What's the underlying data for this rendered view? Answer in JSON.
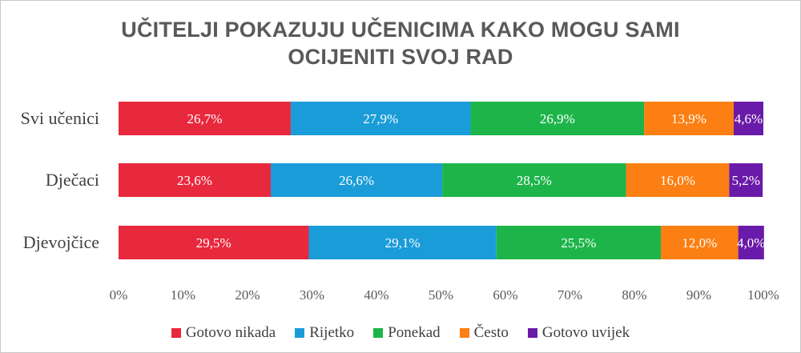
{
  "chart_data": {
    "type": "bar",
    "orientation": "horizontal",
    "stacked": "percent",
    "title_lines": [
      "UČITELJI POKAZUJU UČENICIMA KAKO MOGU SAMI",
      "OCIJENITI SVOJ RAD"
    ],
    "categories": [
      "Svi učenici",
      "Dječaci",
      "Djevojčice"
    ],
    "series": [
      {
        "name": "Gotovo nikada",
        "color": "#e8283c",
        "values": [
          26.7,
          23.6,
          29.5
        ],
        "labels": [
          "26,7%",
          "23,6%",
          "29,5%"
        ]
      },
      {
        "name": "Rijetko",
        "color": "#1a9cd8",
        "values": [
          27.9,
          26.6,
          29.1
        ],
        "labels": [
          "27,9%",
          "26,6%",
          "29,1%"
        ]
      },
      {
        "name": "Ponekad",
        "color": "#1db54a",
        "values": [
          26.9,
          28.5,
          25.5
        ],
        "labels": [
          "26,9%",
          "28,5%",
          "25,5%"
        ]
      },
      {
        "name": "Često",
        "color": "#fb7f12",
        "values": [
          13.9,
          16.0,
          12.0
        ],
        "labels": [
          "13,9%",
          "16,0%",
          "12,0%"
        ]
      },
      {
        "name": "Gotovo uvijek",
        "color": "#6a1aa8",
        "values": [
          4.6,
          5.2,
          4.0
        ],
        "labels": [
          "4,6%",
          "5,2%",
          "4,0%"
        ]
      }
    ],
    "x_ticks": [
      "0%",
      "10%",
      "20%",
      "30%",
      "40%",
      "50%",
      "60%",
      "70%",
      "80%",
      "90%",
      "100%"
    ],
    "xlim": [
      0,
      100
    ],
    "grid": false,
    "legend_position": "bottom"
  }
}
